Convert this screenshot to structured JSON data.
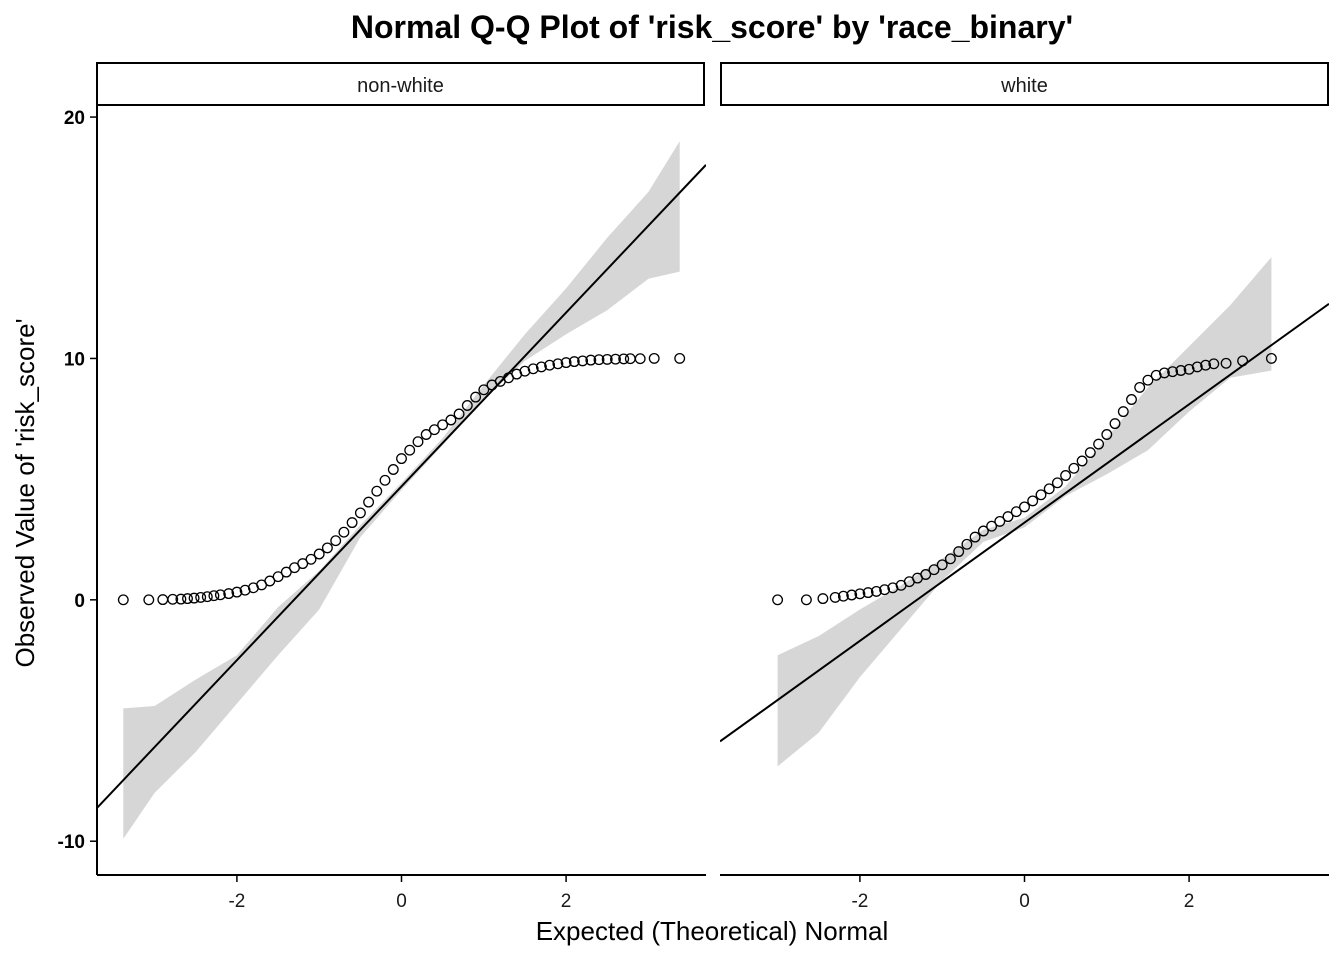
{
  "chart_data": {
    "type": "scatter",
    "title": "Normal Q-Q Plot of 'risk_score' by 'race_binary'",
    "xlabel": "Expected (Theoretical) Normal",
    "ylabel": "Observed Value of 'risk_score'",
    "xlim": [
      -3.7,
      3.7
    ],
    "ylim": [
      -11.4,
      20.5
    ],
    "x_ticks": [
      -2,
      0,
      2
    ],
    "x_tick_labels": [
      "-2",
      "0",
      "2"
    ],
    "y_ticks": [
      -10,
      0,
      10,
      20
    ],
    "y_tick_labels": [
      "-10",
      "0",
      "10",
      "20"
    ],
    "grid": false,
    "facets": [
      {
        "name": "non-white",
        "points": {
          "x": [
            -3.38,
            -3.07,
            -2.9,
            -2.78,
            -2.68,
            -2.6,
            -2.52,
            -2.44,
            -2.36,
            -2.28,
            -2.2,
            -2.1,
            -2.0,
            -1.9,
            -1.8,
            -1.7,
            -1.6,
            -1.5,
            -1.4,
            -1.3,
            -1.2,
            -1.1,
            -1.0,
            -0.9,
            -0.8,
            -0.7,
            -0.6,
            -0.5,
            -0.4,
            -0.3,
            -0.2,
            -0.1,
            0.0,
            0.1,
            0.2,
            0.3,
            0.4,
            0.5,
            0.6,
            0.7,
            0.8,
            0.9,
            1.0,
            1.1,
            1.2,
            1.3,
            1.4,
            1.5,
            1.6,
            1.7,
            1.8,
            1.9,
            2.0,
            2.1,
            2.2,
            2.3,
            2.4,
            2.5,
            2.6,
            2.7,
            2.78,
            2.9,
            3.07,
            3.38
          ],
          "y": [
            0.0,
            0.0,
            0.01,
            0.02,
            0.03,
            0.05,
            0.07,
            0.1,
            0.13,
            0.17,
            0.21,
            0.26,
            0.32,
            0.4,
            0.5,
            0.62,
            0.78,
            0.96,
            1.15,
            1.33,
            1.5,
            1.68,
            1.9,
            2.15,
            2.45,
            2.8,
            3.2,
            3.6,
            4.05,
            4.5,
            4.95,
            5.4,
            5.85,
            6.2,
            6.55,
            6.85,
            7.05,
            7.25,
            7.45,
            7.7,
            8.05,
            8.4,
            8.7,
            8.9,
            9.05,
            9.2,
            9.35,
            9.47,
            9.57,
            9.65,
            9.72,
            9.78,
            9.83,
            9.87,
            9.9,
            9.93,
            9.95,
            9.96,
            9.97,
            9.98,
            9.99,
            9.99,
            10.0,
            10.0
          ]
        },
        "line": {
          "slope": 3.6,
          "intercept": 4.7
        },
        "band": {
          "x": [
            -3.38,
            -3.0,
            -2.5,
            -2.0,
            -1.5,
            -1.0,
            -0.5,
            0.0,
            0.5,
            1.0,
            1.5,
            2.0,
            2.5,
            3.0,
            3.38
          ],
          "lower": [
            -9.9,
            -8.0,
            -6.3,
            -4.3,
            -2.3,
            -0.4,
            2.6,
            4.55,
            6.4,
            8.3,
            9.9,
            11.0,
            12.0,
            13.3,
            13.6
          ],
          "upper": [
            -4.5,
            -4.4,
            -3.3,
            -2.3,
            -0.3,
            1.2,
            3.1,
            4.85,
            6.7,
            8.9,
            11.0,
            12.9,
            15.0,
            16.9,
            19.0
          ]
        }
      },
      {
        "name": "white",
        "points": {
          "x": [
            -3.0,
            -2.65,
            -2.45,
            -2.3,
            -2.2,
            -2.1,
            -2.0,
            -1.9,
            -1.8,
            -1.7,
            -1.6,
            -1.5,
            -1.4,
            -1.3,
            -1.2,
            -1.1,
            -1.0,
            -0.9,
            -0.8,
            -0.7,
            -0.6,
            -0.5,
            -0.4,
            -0.3,
            -0.2,
            -0.1,
            0.0,
            0.1,
            0.2,
            0.3,
            0.4,
            0.5,
            0.6,
            0.7,
            0.8,
            0.9,
            1.0,
            1.1,
            1.2,
            1.3,
            1.4,
            1.5,
            1.6,
            1.7,
            1.8,
            1.9,
            2.0,
            2.1,
            2.2,
            2.3,
            2.45,
            2.65,
            3.0
          ],
          "y": [
            0.0,
            0.0,
            0.05,
            0.1,
            0.15,
            0.2,
            0.25,
            0.3,
            0.35,
            0.42,
            0.5,
            0.6,
            0.75,
            0.9,
            1.05,
            1.25,
            1.45,
            1.7,
            2.0,
            2.3,
            2.6,
            2.85,
            3.05,
            3.25,
            3.45,
            3.65,
            3.85,
            4.1,
            4.35,
            4.6,
            4.85,
            5.15,
            5.45,
            5.75,
            6.1,
            6.45,
            6.85,
            7.3,
            7.8,
            8.3,
            8.8,
            9.1,
            9.3,
            9.4,
            9.45,
            9.5,
            9.55,
            9.65,
            9.72,
            9.78,
            9.8,
            9.9,
            10.0
          ]
        },
        "line": {
          "slope": 2.45,
          "intercept": 3.2
        },
        "band": {
          "x": [
            -3.0,
            -2.5,
            -2.0,
            -1.5,
            -1.0,
            -0.5,
            0.0,
            0.5,
            1.0,
            1.5,
            2.0,
            2.5,
            3.0
          ],
          "lower": [
            -6.9,
            -5.5,
            -3.2,
            -1.2,
            0.8,
            2.4,
            3.0,
            4.3,
            5.2,
            6.2,
            7.8,
            9.2,
            9.5
          ],
          "upper": [
            -2.3,
            -1.5,
            -0.4,
            0.6,
            1.7,
            2.9,
            3.4,
            4.7,
            6.7,
            8.8,
            10.5,
            12.2,
            14.2
          ]
        }
      }
    ]
  }
}
